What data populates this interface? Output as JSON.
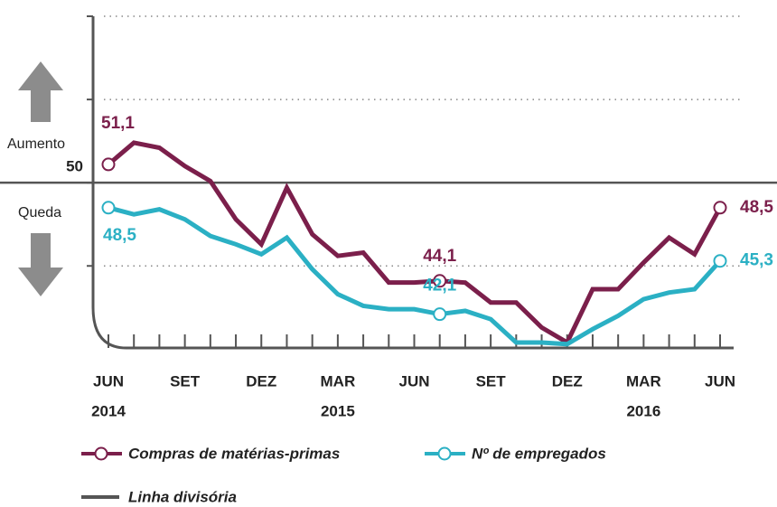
{
  "chart_data": {
    "type": "line",
    "categories": [
      "JUN",
      null,
      null,
      "SET",
      null,
      null,
      "DEZ",
      null,
      null,
      "MAR",
      null,
      null,
      "JUN",
      null,
      null,
      "SET",
      null,
      null,
      "DEZ",
      null,
      null,
      "MAR",
      null,
      null,
      "JUN"
    ],
    "category_years": [
      "2014",
      null,
      null,
      null,
      null,
      null,
      null,
      null,
      null,
      "2015",
      null,
      null,
      null,
      null,
      null,
      null,
      null,
      null,
      null,
      null,
      null,
      "2016",
      null,
      null,
      null
    ],
    "series": [
      {
        "name": "Compras de matérias-primas",
        "color": "#7b1f4b",
        "values": [
          51.1,
          52.4,
          52.1,
          51.0,
          50.1,
          47.8,
          46.3,
          49.7,
          46.9,
          45.6,
          45.8,
          44.0,
          44.0,
          44.1,
          44.0,
          42.8,
          42.8,
          41.3,
          40.4,
          43.6,
          43.6,
          45.2,
          46.7,
          45.7,
          48.5
        ],
        "value_labels": [
          "51,1",
          null,
          null,
          null,
          null,
          null,
          null,
          null,
          null,
          null,
          null,
          null,
          null,
          "44,1",
          null,
          null,
          null,
          null,
          null,
          null,
          null,
          null,
          null,
          null,
          "48,5"
        ]
      },
      {
        "name": "Nº de empregados",
        "color": "#2bb0c4",
        "values": [
          48.5,
          48.1,
          48.4,
          47.8,
          46.8,
          46.3,
          45.7,
          46.7,
          44.8,
          43.3,
          42.6,
          42.4,
          42.4,
          42.1,
          42.3,
          41.8,
          40.4,
          40.4,
          40.3,
          41.2,
          42.0,
          43.0,
          43.4,
          43.6,
          45.3
        ],
        "value_labels": [
          "48,5",
          null,
          null,
          null,
          null,
          null,
          null,
          null,
          null,
          null,
          null,
          null,
          null,
          "42,1",
          null,
          null,
          null,
          null,
          null,
          null,
          null,
          null,
          null,
          null,
          "45,3"
        ]
      }
    ],
    "threshold": {
      "name": "Linha divisória",
      "value": 50,
      "color": "#555555"
    },
    "annotations": {
      "up": "Aumento",
      "down": "Queda"
    },
    "ylim": [
      39.8,
      60
    ],
    "yticks": [
      45,
      50,
      55,
      60
    ],
    "grid": true
  }
}
